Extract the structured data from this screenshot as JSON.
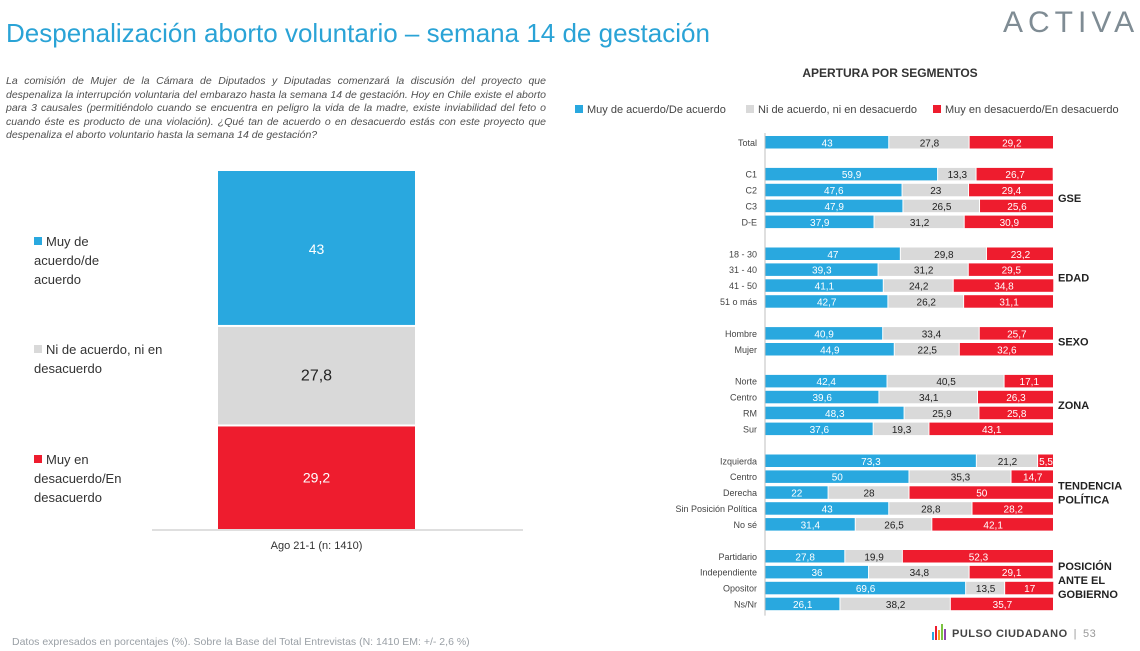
{
  "header": {
    "title": "Despenalización aborto voluntario – semana 14 de gestación",
    "logo": "ACTIVA"
  },
  "question": "La comisión de Mujer de la Cámara de Diputados y Diputadas comenzará la discusión del proyecto que despenaliza la interrupción voluntaria del embarazo hasta la semana 14 de gestación. Hoy en Chile existe el aborto para 3 causales (permitiéndolo cuando se encuentra en peligro la vida de la madre, existe inviabilidad del feto o cuando éste es producto de una violación). ¿Qué tan de acuerdo o en desacuerdo estás con este proyecto que despenaliza el aborto voluntario hasta la semana 14 de gestación?",
  "colors": {
    "agree": "#29a8df",
    "neutral": "#d9d9d9",
    "disagree": "#ee1c2e"
  },
  "left_legend": {
    "agree": "Muy de acuerdo/de acuerdo",
    "neutral": "Ni de acuerdo, ni en desacuerdo",
    "disagree": "Muy en desacuerdo/En desacuerdo"
  },
  "right_title": "APERTURA POR SEGMENTOS",
  "right_legend": {
    "agree": "Muy de acuerdo/De acuerdo",
    "neutral": "Ni de acuerdo, ni en desacuerdo",
    "disagree": "Muy en desacuerdo/En desacuerdo"
  },
  "footer": "Datos expresados en porcentajes (%). Sobre la Base del Total Entrevistas (N: 1410  EM: +/- 2,6 %)",
  "brand": "PULSO CIUDADANO",
  "page_number": "53",
  "chart_data": [
    {
      "type": "bar",
      "stacked": true,
      "orientation": "vertical",
      "categories": [
        "Ago 21-1 (n: 1410)"
      ],
      "series": [
        {
          "name": "Muy de acuerdo/de acuerdo",
          "values": [
            43
          ],
          "labels": [
            "43"
          ]
        },
        {
          "name": "Ni de acuerdo, ni en desacuerdo",
          "values": [
            27.8
          ],
          "labels": [
            "27,8"
          ]
        },
        {
          "name": "Muy en desacuerdo/En desacuerdo",
          "values": [
            29.2
          ],
          "labels": [
            "29,2"
          ]
        }
      ],
      "ylim": [
        0,
        100
      ]
    },
    {
      "type": "bar",
      "stacked": true,
      "orientation": "horizontal",
      "title": "APERTURA POR SEGMENTOS",
      "xlim": [
        0,
        100
      ],
      "series_names": [
        "Muy de acuerdo/De acuerdo",
        "Ni de acuerdo, ni en desacuerdo",
        "Muy en desacuerdo/En desacuerdo"
      ],
      "groups": [
        {
          "label": "",
          "rows": [
            {
              "label": "Total",
              "values": [
                43,
                27.8,
                29.2
              ],
              "labels": [
                "43",
                "27,8",
                "29,2"
              ]
            }
          ]
        },
        {
          "label": "GSE",
          "rows": [
            {
              "label": "C1",
              "values": [
                59.9,
                13.3,
                26.7
              ],
              "labels": [
                "59,9",
                "13,3",
                "26,7"
              ]
            },
            {
              "label": "C2",
              "values": [
                47.6,
                23,
                29.4
              ],
              "labels": [
                "47,6",
                "23",
                "29,4"
              ]
            },
            {
              "label": "C3",
              "values": [
                47.9,
                26.5,
                25.6
              ],
              "labels": [
                "47,9",
                "26,5",
                "25,6"
              ]
            },
            {
              "label": "D-E",
              "values": [
                37.9,
                31.2,
                30.9
              ],
              "labels": [
                "37,9",
                "31,2",
                "30,9"
              ]
            }
          ]
        },
        {
          "label": "EDAD",
          "rows": [
            {
              "label": "18 - 30",
              "values": [
                47,
                29.8,
                23.2
              ],
              "labels": [
                "47",
                "29,8",
                "23,2"
              ]
            },
            {
              "label": "31 - 40",
              "values": [
                39.3,
                31.2,
                29.5
              ],
              "labels": [
                "39,3",
                "31,2",
                "29,5"
              ]
            },
            {
              "label": "41 - 50",
              "values": [
                41.1,
                24.2,
                34.8
              ],
              "labels": [
                "41,1",
                "24,2",
                "34,8"
              ]
            },
            {
              "label": "51 o más",
              "values": [
                42.7,
                26.2,
                31.1
              ],
              "labels": [
                "42,7",
                "26,2",
                "31,1"
              ]
            }
          ]
        },
        {
          "label": "SEXO",
          "rows": [
            {
              "label": "Hombre",
              "values": [
                40.9,
                33.4,
                25.7
              ],
              "labels": [
                "40,9",
                "33,4",
                "25,7"
              ]
            },
            {
              "label": "Mujer",
              "values": [
                44.9,
                22.5,
                32.6
              ],
              "labels": [
                "44,9",
                "22,5",
                "32,6"
              ]
            }
          ]
        },
        {
          "label": "ZONA",
          "rows": [
            {
              "label": "Norte",
              "values": [
                42.4,
                40.5,
                17.1
              ],
              "labels": [
                "42,4",
                "40,5",
                "17,1"
              ]
            },
            {
              "label": "Centro",
              "values": [
                39.6,
                34.1,
                26.3
              ],
              "labels": [
                "39,6",
                "34,1",
                "26,3"
              ]
            },
            {
              "label": "RM",
              "values": [
                48.3,
                25.9,
                25.8
              ],
              "labels": [
                "48,3",
                "25,9",
                "25,8"
              ]
            },
            {
              "label": "Sur",
              "values": [
                37.6,
                19.3,
                43.1
              ],
              "labels": [
                "37,6",
                "19,3",
                "43,1"
              ]
            }
          ]
        },
        {
          "label": "TENDENCIA POLÍTICA",
          "rows": [
            {
              "label": "Izquierda",
              "values": [
                73.3,
                21.2,
                5.5
              ],
              "labels": [
                "73,3",
                "21,2",
                "5,5"
              ]
            },
            {
              "label": "Centro",
              "values": [
                50,
                35.3,
                14.7
              ],
              "labels": [
                "50",
                "35,3",
                "14,7"
              ]
            },
            {
              "label": "Derecha",
              "values": [
                22,
                28,
                50
              ],
              "labels": [
                "22",
                "28",
                "50"
              ]
            },
            {
              "label": "Sin Posición Política",
              "values": [
                43,
                28.8,
                28.2
              ],
              "labels": [
                "43",
                "28,8",
                "28,2"
              ]
            },
            {
              "label": "No sé",
              "values": [
                31.4,
                26.5,
                42.1
              ],
              "labels": [
                "31,4",
                "26,5",
                "42,1"
              ]
            }
          ]
        },
        {
          "label": "POSICIÓN ANTE EL GOBIERNO",
          "rows": [
            {
              "label": "Partidario",
              "values": [
                27.8,
                19.9,
                52.3
              ],
              "labels": [
                "27,8",
                "19,9",
                "52,3"
              ]
            },
            {
              "label": "Independiente",
              "values": [
                36,
                34.8,
                29.1
              ],
              "labels": [
                "36",
                "34,8",
                "29,1"
              ]
            },
            {
              "label": "Opositor",
              "values": [
                69.6,
                13.5,
                17
              ],
              "labels": [
                "69,6",
                "13,5",
                "17"
              ]
            },
            {
              "label": "Ns/Nr",
              "values": [
                26.1,
                38.2,
                35.7
              ],
              "labels": [
                "26,1",
                "38,2",
                "35,7"
              ]
            }
          ]
        }
      ]
    }
  ]
}
